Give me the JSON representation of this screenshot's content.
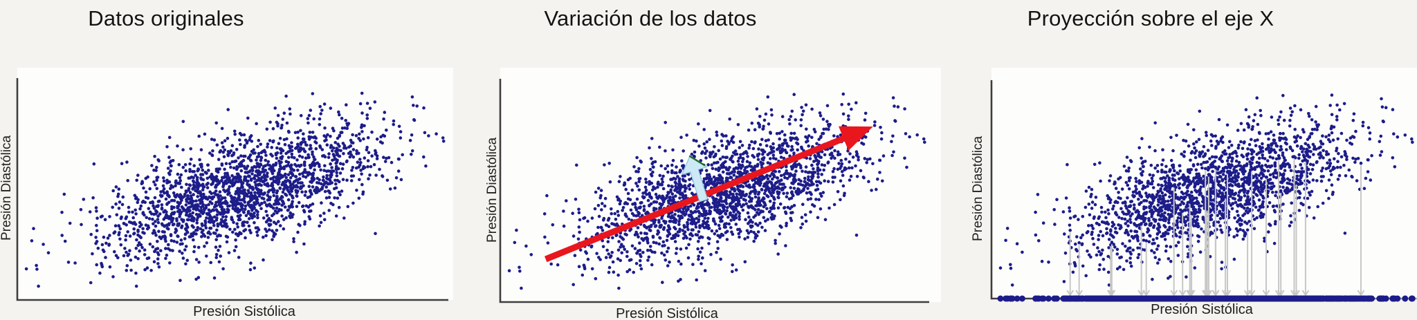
{
  "page": {
    "background": "#f5f3ef"
  },
  "colors": {
    "point": "#1c1c8a",
    "axis": "#3d3d3d",
    "principal_arrow": "#e9161e",
    "secondary_arrow": "#cde9f5",
    "projection_arrow": "#c7c7c7"
  },
  "panels": [
    {
      "title": "Datos originales",
      "xlabel": "Presión Sistólica",
      "ylabel": "Presión Diastólica"
    },
    {
      "title": "Variación de los datos",
      "xlabel": "Presión Sistólica",
      "ylabel": "Presión Diastólica"
    },
    {
      "title": "Proyección sobre el eje X",
      "xlabel": "Presión Sistólica",
      "ylabel": "Presión Diastólica"
    }
  ],
  "chart_data": [
    {
      "type": "scatter",
      "title": "Datos originales",
      "xlabel": "Presión Sistólica",
      "ylabel": "Presión Diastólica",
      "axes": {
        "ticks": "none",
        "grid": false,
        "frame": "left-bottom"
      },
      "point_color": "#1c1c8a",
      "point_radius": 2.3,
      "distribution": {
        "kind": "bivariate-normal",
        "n": 2000,
        "seed": 7,
        "center_frac": [
          0.525,
          0.5
        ],
        "std_frac": [
          0.162,
          0.15
        ],
        "correlation": 0.62
      }
    },
    {
      "type": "scatter",
      "title": "Variación de los datos",
      "xlabel": "Presión Sistólica",
      "ylabel": "Presión Diastólica",
      "axes": {
        "ticks": "none",
        "grid": false,
        "frame": "left-bottom"
      },
      "point_color": "#1c1c8a",
      "point_radius": 2.3,
      "distribution": {
        "kind": "bivariate-normal",
        "n": 2000,
        "seed": 7,
        "center_frac": [
          0.525,
          0.5
        ],
        "std_frac": [
          0.162,
          0.15
        ],
        "correlation": 0.62
      },
      "annotations": [
        {
          "type": "arrow",
          "name": "principal-component-arrow",
          "color": "#e9161e",
          "from_frac": [
            0.106,
            0.192
          ],
          "to_frac": [
            0.869,
            0.786
          ],
          "shaft_width": 9,
          "head_length": 46,
          "head_half_width": 19
        },
        {
          "type": "arrow",
          "name": "secondary-component-arrow",
          "color": "#cde9f5",
          "outline": "#8fc3d8",
          "from_frac": [
            0.474,
            0.455
          ],
          "to_frac": [
            0.442,
            0.653
          ],
          "shaft_width": 12,
          "head_length": 22,
          "head_half_width": 19
        },
        {
          "type": "line",
          "name": "arrowhead-green-edge",
          "color": "#1e6f2f",
          "from_frac": [
            0.442,
            0.653
          ],
          "to_frac": [
            0.476,
            0.613
          ],
          "width": 2.5
        }
      ]
    },
    {
      "type": "scatter",
      "title": "Proyección sobre el eje X",
      "xlabel": "Presión Sistólica",
      "ylabel": "Presión Diastólica",
      "axes": {
        "ticks": "none",
        "grid": false,
        "frame": "left-bottom",
        "x_axis_fade_right": true
      },
      "point_color": "#1c1c8a",
      "point_radius": 2.3,
      "distribution": {
        "kind": "bivariate-normal",
        "n": 2000,
        "seed": 7,
        "center_frac": [
          0.525,
          0.5
        ],
        "std_frac": [
          0.162,
          0.15
        ],
        "correlation": 0.62
      },
      "projection": {
        "axis": "x",
        "dot_color": "#1c1c8a",
        "dot_radius": 4.5,
        "arrows": {
          "count": 28,
          "seed": 99,
          "color": "#c7c7c7",
          "width": 2
        }
      }
    }
  ]
}
